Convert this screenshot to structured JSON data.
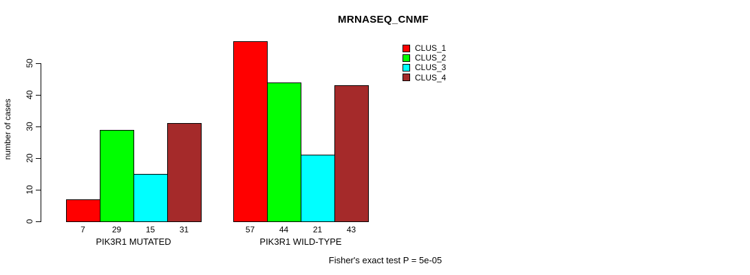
{
  "chart_data": {
    "type": "bar",
    "title": "MRNASEQ_CNMF",
    "ylabel": "number of cases",
    "xlabel": "",
    "groups": [
      "PIK3R1 MUTATED",
      "PIK3R1 WILD-TYPE"
    ],
    "series": [
      {
        "name": "CLUS_1",
        "color": "#FF0000",
        "values": [
          7,
          57
        ]
      },
      {
        "name": "CLUS_2",
        "color": "#00FF00",
        "values": [
          29,
          44
        ]
      },
      {
        "name": "CLUS_3",
        "color": "#00FFFF",
        "values": [
          15,
          21
        ]
      },
      {
        "name": "CLUS_4",
        "color": "#A52A2A",
        "values": [
          31,
          43
        ]
      }
    ],
    "bar_value_labels": [
      [
        7,
        29,
        15,
        31
      ],
      [
        57,
        44,
        21,
        43
      ]
    ],
    "yticks": [
      0,
      10,
      20,
      30,
      40,
      50
    ],
    "ylim": [
      0,
      57
    ],
    "grid": false,
    "legend_position": "top-right",
    "legend_entries": [
      "CLUS_1",
      "CLUS_2",
      "CLUS_3",
      "CLUS_4"
    ],
    "annotation": "Fisher's exact test P = 5e-05",
    "colors": {
      "bar_border": "#000000",
      "axis": "#000000",
      "text": "#000000",
      "background": "#ffffff"
    }
  }
}
